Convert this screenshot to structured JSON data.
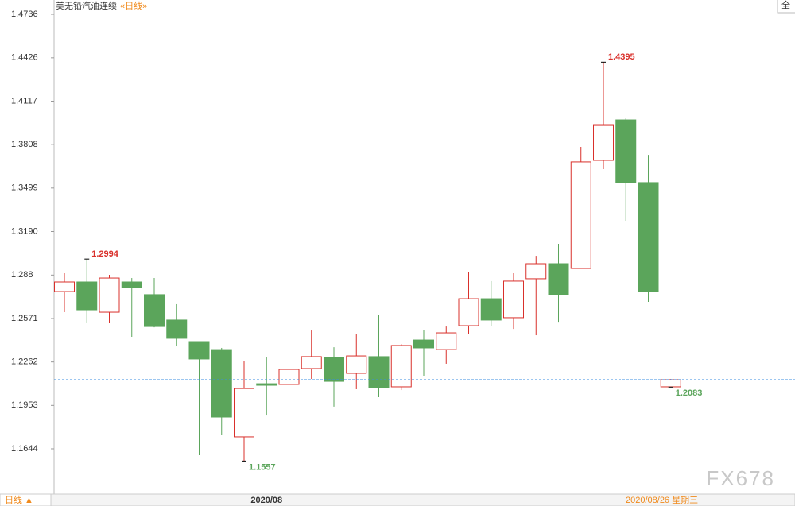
{
  "chart_data": {
    "type": "candlestick",
    "title": "美无铅汽油连续",
    "period_tag": "«日线»",
    "categories": [
      null,
      null,
      null,
      null,
      null,
      null,
      null,
      null,
      null,
      "2020/08",
      null,
      null,
      null,
      null,
      null,
      null,
      null,
      null,
      null,
      null,
      null,
      null,
      null,
      null,
      null,
      null,
      null,
      null
    ],
    "open": [
      1.2763,
      1.2831,
      1.2616,
      1.2831,
      1.2741,
      1.256,
      1.2407,
      1.235,
      1.1729,
      1.2107,
      1.2102,
      1.2215,
      1.2294,
      1.2181,
      1.23,
      1.2085,
      1.2418,
      1.235,
      1.252,
      1.2712,
      1.2577,
      1.2854,
      1.2961,
      1.2927,
      1.3696,
      1.3984,
      1.3538,
      1.2085
    ],
    "high": [
      1.2893,
      1.2994,
      1.2882,
      1.2859,
      1.2859,
      1.2673,
      1.2407,
      1.2362,
      1.2266,
      1.2294,
      1.2633,
      1.2486,
      1.2367,
      1.2463,
      1.2594,
      1.239,
      1.2486,
      1.2514,
      1.2899,
      1.2837,
      1.2893,
      1.3017,
      1.3102,
      1.3792,
      1.4395,
      1.3995,
      1.3735,
      1.2141
    ],
    "low": [
      1.2616,
      1.2543,
      1.2537,
      1.2441,
      1.2508,
      1.2373,
      1.1599,
      1.174,
      1.1557,
      1.1881,
      1.2085,
      1.2141,
      1.1944,
      1.2068,
      1.2011,
      1.2062,
      1.2164,
      1.2249,
      1.2458,
      1.252,
      1.2497,
      1.2452,
      1.2548,
      1.2927,
      1.3634,
      1.3266,
      1.269,
      1.2083
    ],
    "close": [
      1.2831,
      1.2633,
      1.2859,
      1.2791,
      1.2514,
      1.243,
      1.2283,
      1.187,
      1.2073,
      1.2096,
      1.2209,
      1.23,
      1.2124,
      1.2305,
      1.2079,
      1.2379,
      1.2362,
      1.2469,
      1.2712,
      1.256,
      1.2837,
      1.2961,
      1.2741,
      1.3685,
      1.395,
      1.3538,
      1.2763,
      1.2136
    ],
    "up_color": "#d9302b",
    "down_color": "#5ba55b",
    "last_line_color": "#3a8de0",
    "ylim": [
      1.1333,
      1.4736
    ],
    "yticks": [
      1.4736,
      1.4426,
      1.4117,
      1.3808,
      1.3499,
      {
        "value": 1.319,
        "label": "1.3190"
      },
      1.288,
      1.2571,
      1.2262,
      1.1953,
      1.1644
    ]
  },
  "bottom_bar": {
    "period": "日线 ▲",
    "cursor_date": "2020/08/26 星期三"
  },
  "corner_button": "全",
  "watermark": "FX678"
}
